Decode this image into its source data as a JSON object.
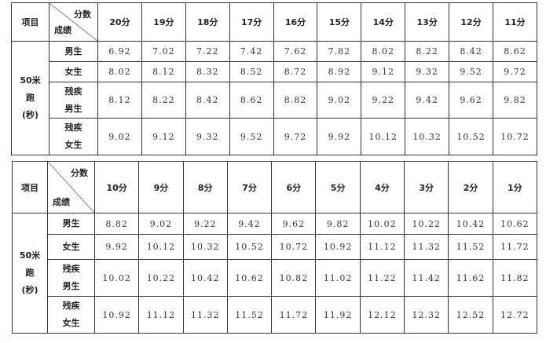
{
  "tables": [
    {
      "project_header": "项目",
      "diag_top": "分数",
      "diag_bottom": "成绩",
      "scores": [
        "20分",
        "19分",
        "18分",
        "17分",
        "16分",
        "15分",
        "14分",
        "13分",
        "12分",
        "11分"
      ],
      "project_lines": [
        "50米",
        "跑",
        "(秒)"
      ],
      "rows": [
        {
          "label": [
            "男生"
          ],
          "values": [
            "6.92",
            "7.02",
            "7.22",
            "7.42",
            "7.62",
            "7.82",
            "8.02",
            "8.22",
            "8.42",
            "8.62"
          ]
        },
        {
          "label": [
            "女生"
          ],
          "values": [
            "8.02",
            "8.12",
            "8.32",
            "8.52",
            "8.72",
            "8.92",
            "9.12",
            "9.32",
            "9.52",
            "9.72"
          ]
        },
        {
          "label": [
            "残疾",
            "男生"
          ],
          "values": [
            "8.12",
            "8.22",
            "8.42",
            "8.62",
            "8.82",
            "9.02",
            "9.22",
            "9.42",
            "9.62",
            "9.82"
          ]
        },
        {
          "label": [
            "残疾",
            "女生"
          ],
          "values": [
            "9.02",
            "9.12",
            "9.32",
            "9.52",
            "9.72",
            "9.92",
            "10.12",
            "10.32",
            "10.52",
            "10.72"
          ]
        }
      ]
    },
    {
      "project_header": "项目",
      "diag_top": "分数",
      "diag_bottom": "成绩",
      "scores": [
        "10分",
        "9分",
        "8分",
        "7分",
        "6分",
        "5分",
        "4分",
        "3分",
        "2分",
        "1分"
      ],
      "project_lines": [
        "50米",
        "跑",
        "(秒)"
      ],
      "rows": [
        {
          "label": [
            "男生"
          ],
          "values": [
            "8.82",
            "9.02",
            "9.22",
            "9.42",
            "9.62",
            "9.82",
            "10.02",
            "10.22",
            "10.42",
            "10.62"
          ]
        },
        {
          "label": [
            "女生"
          ],
          "values": [
            "9.92",
            "10.12",
            "10.32",
            "10.52",
            "10.72",
            "10.92",
            "11.12",
            "11.32",
            "11.52",
            "11.72"
          ]
        },
        {
          "label": [
            "残疾",
            "男生"
          ],
          "values": [
            "10.02",
            "10.22",
            "10.42",
            "10.62",
            "10.82",
            "11.02",
            "11.22",
            "11.42",
            "11.62",
            "11.82"
          ]
        },
        {
          "label": [
            "残疾",
            "女生"
          ],
          "values": [
            "10.92",
            "11.12",
            "11.32",
            "11.52",
            "11.72",
            "11.92",
            "12.12",
            "12.32",
            "12.52",
            "12.72"
          ]
        }
      ]
    }
  ]
}
